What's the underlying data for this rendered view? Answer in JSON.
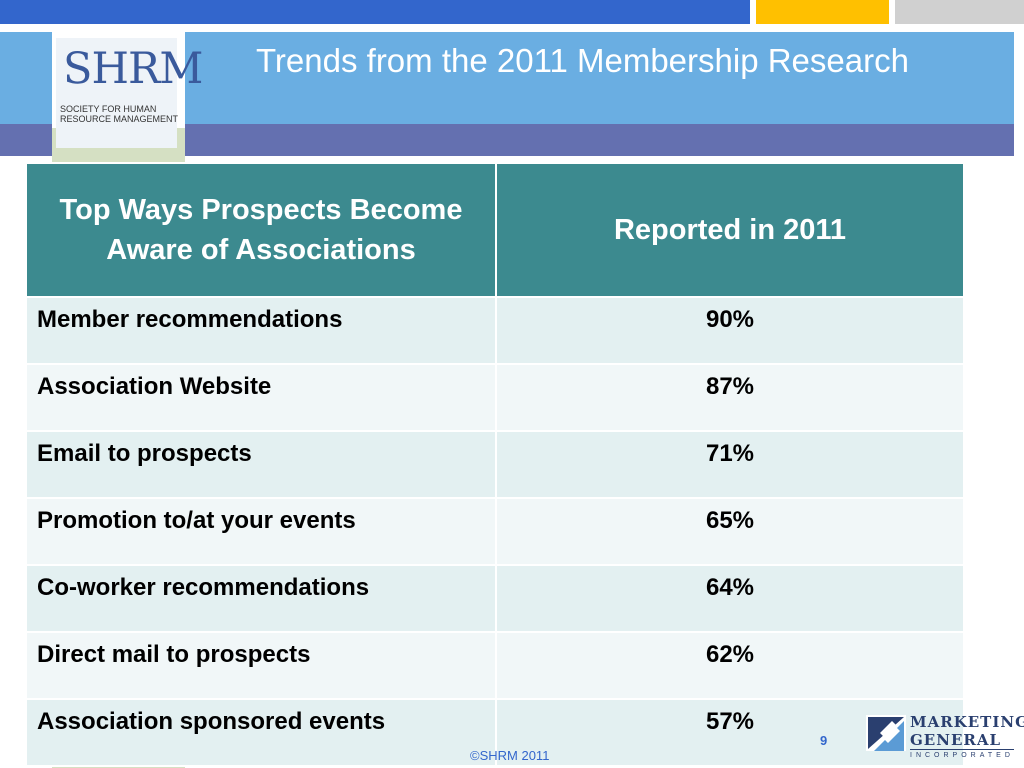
{
  "slide": {
    "title": "Trends from the 2011 Membership Research",
    "page_number": "9",
    "copyright": "©SHRM 2011"
  },
  "shrm_logo": {
    "mark": "SHRM",
    "subtitle": "Society for Human Resource Management"
  },
  "table": {
    "headers": [
      "Top Ways Prospects Become Aware of Associations",
      "Reported in 2011"
    ],
    "rows": [
      {
        "label": "Member recommendations",
        "value": "90%"
      },
      {
        "label": "Association Website",
        "value": "87%"
      },
      {
        "label": "Email to prospects",
        "value": "71%"
      },
      {
        "label": "Promotion to/at your events",
        "value": "65%"
      },
      {
        "label": "Co-worker recommendations",
        "value": "64%"
      },
      {
        "label": "Direct mail to prospects",
        "value": "62%"
      },
      {
        "label": "Association sponsored events",
        "value": "57%"
      }
    ]
  },
  "mg_logo": {
    "line1": "MARKETING",
    "line2": "GENERAL",
    "line3": "INCORPORATED",
    "icon": "mg-emblem-icon"
  },
  "colors": {
    "header_teal": "#3c8a8f",
    "band_blue": "#6aaee2",
    "top_blue": "#3366cc",
    "top_gold": "#ffc000"
  }
}
